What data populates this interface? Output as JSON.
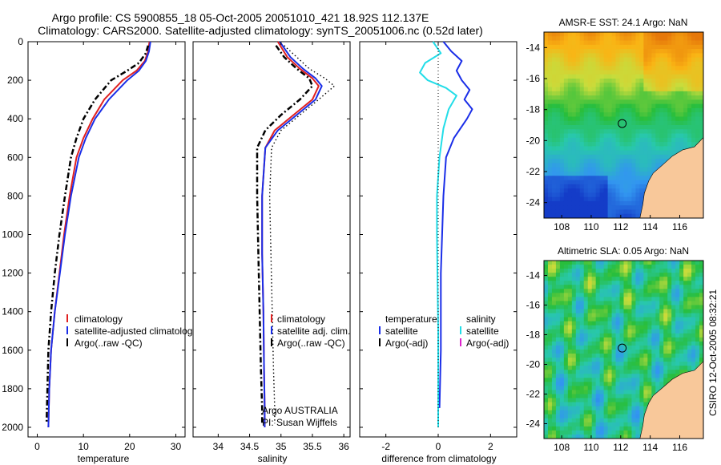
{
  "header": {
    "line1": "Argo profile: CS 5900855_18 05-Oct-2005 20051010_421 18.92S 112.137E",
    "line2": "Climatology: CARS2000. Satellite-adjusted climatology: synTS_20051006.nc (0.52d later)"
  },
  "footer": {
    "stamp": "CSIRO 12-Oct-2005 08:32:21",
    "argo_label": "Argo AUSTRALIA",
    "pi_label": "PI: Susan Wijffels"
  },
  "colors": {
    "climatology": "#e02020",
    "satellite": "#1a2ee8",
    "argo": "#000000",
    "cyan": "#22dde8",
    "magenta": "#dd22cc",
    "land": "#f8c89a"
  },
  "chart_data": [
    {
      "type": "line",
      "id": "temperature",
      "xlabel": "temperature",
      "ylabel": "",
      "xlim": [
        -2,
        32
      ],
      "ylim": [
        2050,
        0
      ],
      "xticks": [
        0,
        10,
        20,
        30
      ],
      "yticks": [
        0,
        200,
        400,
        600,
        800,
        1000,
        1200,
        1400,
        1600,
        1800,
        2000
      ],
      "legend": [
        "climatology",
        "satellite-adjusted climatology",
        "Argo(..raw -QC)"
      ],
      "series": [
        {
          "name": "climatology",
          "style": "climatology",
          "x": [
            24.3,
            24.0,
            23.3,
            21.5,
            18.5,
            14.5,
            12.0,
            10.0,
            8.5,
            7.0,
            5.8,
            4.8,
            3.8,
            3.0,
            2.6,
            2.4
          ],
          "y": [
            0,
            50,
            100,
            150,
            200,
            300,
            400,
            500,
            600,
            800,
            1000,
            1200,
            1400,
            1600,
            1800,
            2000
          ]
        },
        {
          "name": "satellite-adjusted climatology",
          "style": "satellite",
          "x": [
            24.5,
            24.2,
            23.5,
            22.0,
            19.5,
            15.5,
            12.5,
            10.5,
            9.0,
            7.3,
            6.0,
            4.9,
            3.8,
            3.0,
            2.6,
            2.4
          ],
          "y": [
            0,
            50,
            100,
            150,
            200,
            300,
            400,
            500,
            600,
            800,
            1000,
            1200,
            1400,
            1600,
            1800,
            2000
          ]
        },
        {
          "name": "Argo(..raw -QC)",
          "style": "argo",
          "x": [
            24.0,
            23.5,
            22.0,
            19.5,
            16.0,
            12.5,
            10.0,
            8.5,
            7.3,
            6.0,
            4.8,
            3.8,
            3.0,
            2.4,
            2.2,
            2.0
          ],
          "y": [
            20,
            60,
            110,
            150,
            200,
            300,
            400,
            500,
            600,
            800,
            1000,
            1200,
            1400,
            1600,
            1800,
            1980
          ]
        }
      ]
    },
    {
      "type": "line",
      "id": "salinity",
      "xlabel": "salinity",
      "ylabel": "",
      "xlim": [
        33.6,
        36.1
      ],
      "ylim": [
        2050,
        0
      ],
      "xticks": [
        34,
        34.5,
        35,
        35.5,
        36
      ],
      "yticks": [
        0,
        200,
        400,
        600,
        800,
        1000,
        1200,
        1400,
        1600,
        1800,
        2000
      ],
      "legend": [
        "climatology",
        "satellite adj. clim.",
        "Argo(..raw -QC)"
      ],
      "series": [
        {
          "name": "climatology",
          "style": "climatology",
          "x": [
            34.95,
            35.1,
            35.3,
            35.5,
            35.6,
            35.5,
            35.2,
            34.9,
            34.75,
            34.7,
            34.7,
            34.72,
            34.73,
            34.74,
            34.74
          ],
          "y": [
            0,
            80,
            140,
            190,
            230,
            300,
            380,
            460,
            550,
            800,
            1100,
            1400,
            1700,
            1900,
            2000
          ]
        },
        {
          "name": "satellite adj. clim.",
          "style": "satellite",
          "x": [
            34.98,
            35.15,
            35.35,
            35.55,
            35.65,
            35.55,
            35.25,
            34.95,
            34.75,
            34.7,
            34.7,
            34.72,
            34.73,
            34.74,
            34.74
          ],
          "y": [
            0,
            80,
            140,
            190,
            230,
            300,
            380,
            460,
            550,
            800,
            1100,
            1400,
            1700,
            1900,
            2000
          ]
        },
        {
          "name": "Argo(..raw -QC)",
          "style": "argo",
          "x": [
            34.92,
            35.05,
            35.25,
            35.45,
            35.5,
            35.3,
            35.0,
            34.75,
            34.62,
            34.62,
            34.64,
            34.66,
            34.68,
            34.7,
            34.7
          ],
          "y": [
            20,
            80,
            140,
            190,
            230,
            300,
            380,
            460,
            550,
            800,
            1100,
            1400,
            1700,
            1900,
            1980
          ]
        },
        {
          "name": "",
          "style": "argo-dotted",
          "x": [
            35.05,
            35.25,
            35.45,
            35.7,
            35.85,
            35.6,
            35.3,
            35.0,
            34.85,
            34.82,
            34.84,
            34.86,
            34.88,
            34.9,
            34.9
          ],
          "y": [
            20,
            80,
            140,
            190,
            230,
            300,
            380,
            460,
            550,
            800,
            1100,
            1400,
            1700,
            1900,
            1980
          ]
        }
      ]
    },
    {
      "type": "line",
      "id": "difference",
      "xlabel": "difference from climatology",
      "ylabel": "",
      "xlim": [
        -3,
        3
      ],
      "ylim": [
        2050,
        0
      ],
      "xticks": [
        -2,
        0,
        2
      ],
      "yticks": [
        0,
        200,
        400,
        600,
        800,
        1000,
        1200,
        1400,
        1600,
        1800,
        2000
      ],
      "legend_left_title": "temperature",
      "legend_right_title": "salinity",
      "legend_left": [
        "satellite",
        "Argo(-adj)"
      ],
      "legend_right": [
        "satellite",
        "Argo(-adj)"
      ],
      "series": [
        {
          "name": "temperature satellite",
          "style": "satellite",
          "x": [
            0.2,
            0.5,
            0.9,
            0.7,
            0.9,
            1.2,
            1.0,
            1.3,
            1.1,
            0.6,
            0.3,
            0.2,
            0.15,
            0.1,
            0.1,
            0.05
          ],
          "y": [
            0,
            50,
            100,
            150,
            200,
            250,
            300,
            350,
            400,
            500,
            600,
            800,
            1000,
            1200,
            1600,
            1900
          ]
        },
        {
          "name": "salinity satellite",
          "style": "cyan",
          "x": [
            -0.2,
            0.1,
            -0.5,
            -0.7,
            -0.4,
            0.3,
            0.7,
            0.4,
            0.2,
            0.05,
            -0.05,
            -0.05,
            0,
            0
          ],
          "y": [
            0,
            60,
            110,
            160,
            200,
            240,
            280,
            350,
            450,
            600,
            800,
            1000,
            1500,
            2000
          ]
        },
        {
          "name": "zero",
          "style": "dotted-black",
          "x": [
            0,
            0
          ],
          "y": [
            0,
            2000
          ]
        }
      ]
    },
    {
      "type": "heatmap",
      "id": "sst-map",
      "title": "AMSR-E SST: 24.1 Argo: NaN",
      "xticks": [
        108,
        110,
        112,
        114,
        116
      ],
      "yticks": [
        -14,
        -16,
        -18,
        -20,
        -22,
        -24
      ],
      "xlim": [
        106.8,
        117.6
      ],
      "ylim": [
        -25,
        -13
      ],
      "marker": {
        "lon": 112.1,
        "lat": -18.9
      }
    },
    {
      "type": "heatmap",
      "id": "sla-map",
      "title": "Altimetric SLA: 0.05 Argo: NaN",
      "xticks": [
        108,
        110,
        112,
        114,
        116
      ],
      "yticks": [
        -14,
        -16,
        -18,
        -20,
        -22,
        -24
      ],
      "xlim": [
        106.8,
        117.6
      ],
      "ylim": [
        -25,
        -13
      ],
      "marker": {
        "lon": 112.1,
        "lat": -18.9
      }
    }
  ]
}
